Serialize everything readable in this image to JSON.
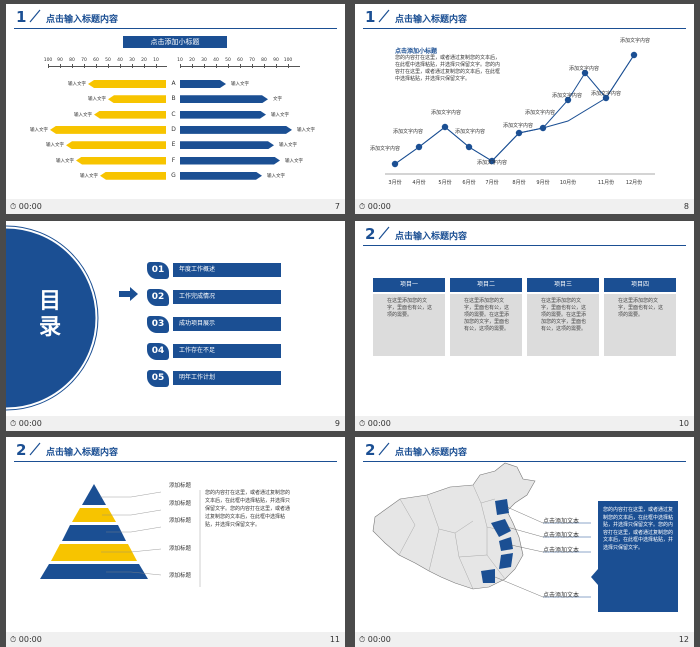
{
  "slide_header_title": "点击输入标题内容",
  "footer_time": "00:00",
  "colors": {
    "blue": "#1b4f93",
    "yellow": "#f7c400",
    "gray": "#dcdcdc",
    "bg": "#4a4a4a"
  },
  "slides": [
    {
      "num": "7",
      "section": "1",
      "subtitle": "点击添加小标题",
      "scale_left": [
        "100",
        "90",
        "80",
        "70",
        "60",
        "50",
        "40",
        "30",
        "20",
        "10"
      ],
      "scale_right": [
        "10",
        "20",
        "30",
        "40",
        "50",
        "60",
        "70",
        "80",
        "90",
        "100"
      ],
      "rows": [
        {
          "letter": "A",
          "left_label": "输入文字",
          "right_label": "输入文字"
        },
        {
          "letter": "B",
          "left_label": "输入文字",
          "right_label": "文字"
        },
        {
          "letter": "C",
          "left_label": "输入文字",
          "right_label": "输入文字"
        },
        {
          "letter": "D",
          "left_label": "输入文字",
          "right_label": "输入文字"
        },
        {
          "letter": "E",
          "left_label": "输入文字",
          "right_label": "输入文字"
        },
        {
          "letter": "F",
          "left_label": "输入文字",
          "right_label": "输入文字"
        },
        {
          "letter": "G",
          "left_label": "输入文字",
          "right_label": "输入文字"
        }
      ]
    },
    {
      "num": "8",
      "section": "1",
      "subtitle": "点击添加小标题",
      "body": "您的内容打在这里，或者通过复制您的文本后，在此框中选择粘贴，并选择只保留文字。您的内容打在这里，或者通过复制您的文本后，在此框中选择粘贴，并选择只保留文字。",
      "months": [
        "3月份",
        "4月份",
        "5月份",
        "6月份",
        "7月份",
        "8月份",
        "9月份",
        "10月份",
        "11月份",
        "12月份"
      ],
      "point_label": "添加文字内容"
    },
    {
      "num": "9",
      "toc_title": "目录",
      "items": [
        {
          "n": "01",
          "label": "年度工作概述"
        },
        {
          "n": "02",
          "label": "工作完成情况"
        },
        {
          "n": "03",
          "label": "成功项目展示"
        },
        {
          "n": "04",
          "label": "工作存在不足"
        },
        {
          "n": "05",
          "label": "明年工作计划"
        }
      ]
    },
    {
      "num": "10",
      "section": "2",
      "cards": [
        {
          "title": "项目一",
          "body": "在这里添加您的文字，里面也有公，这项的需要。"
        },
        {
          "title": "项目二",
          "body": "在这里添加您的文字，里面也有公，这项的需要。在这里添加您的文字，里面也有公，这项的需要。"
        },
        {
          "title": "项目三",
          "body": "在这里添加您的文字，里面也有公，这项的需要。在这里添加您的文字，里面也有公，这项的需要。"
        },
        {
          "title": "项目四",
          "body": "在这里添加您的文字，里面也有公，这项的需要。"
        }
      ]
    },
    {
      "num": "11",
      "section": "2",
      "labels": [
        "添加标题",
        "添加标题",
        "添加标题",
        "添加标题",
        "添加标题"
      ],
      "body": "您的内容打在这里，或者通过复制您的文本后，在此框中选择粘贴，并选择只保留文字。您的内容打在这里，或者通过复制您的文本后，在此框中选择粘贴，并选择只保留文字。"
    },
    {
      "num": "12",
      "section": "2",
      "callouts": [
        "点击添加文本",
        "点击添加文本",
        "点击添加文本",
        "点击添加文本"
      ],
      "body": "您的内容打在这里，或者通过复制您的文本后，在此框中选择粘贴，并选择只保留文字。您的内容打在这里，或者通过复制您的文本后，在此框中选择粘贴，并选择只保留文字。"
    }
  ]
}
